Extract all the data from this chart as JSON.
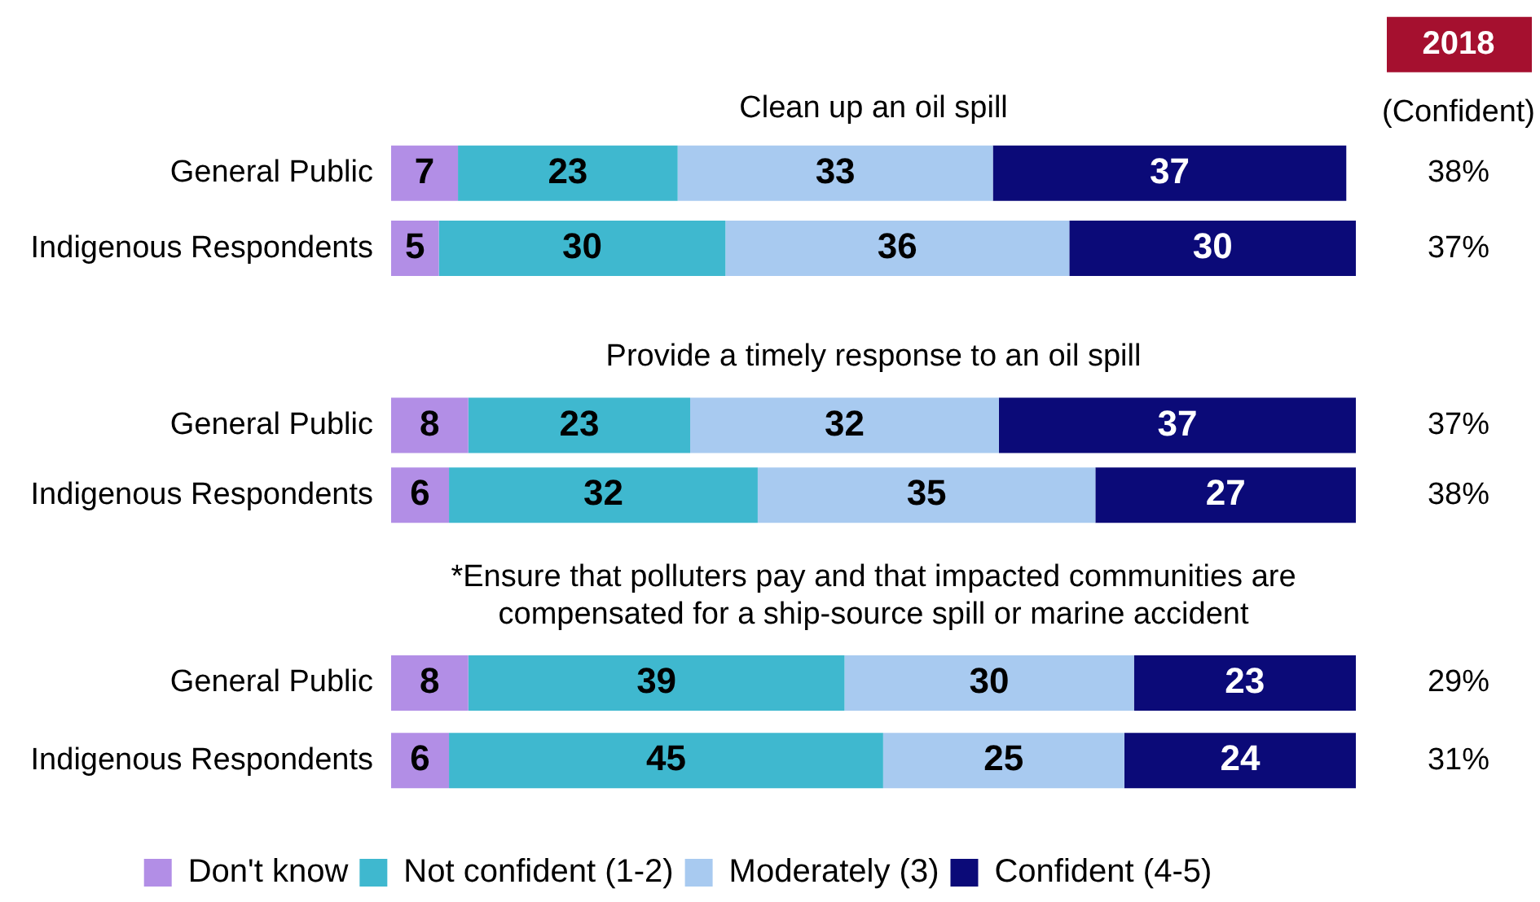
{
  "chart_data": [
    {
      "type": "bar",
      "orientation": "horizontal",
      "stacked": true,
      "title": "Clean up an oil spill",
      "categories": [
        "General Public",
        "Indigenous Respondents"
      ],
      "tick_labels": "y",
      "data_labels": true,
      "annotations": [
        "2018",
        "(Confident)",
        "38%",
        "37%"
      ],
      "series": [
        {
          "color": "#b28ee6",
          "values": [
            7,
            5
          ]
        },
        {
          "color": "#3fb8cf",
          "values": [
            23,
            30
          ]
        },
        {
          "color": "#a8caf0",
          "values": [
            33,
            36
          ]
        },
        {
          "color": "#0b0a78",
          "values": [
            37,
            30
          ]
        }
      ]
    },
    {
      "type": "bar",
      "orientation": "horizontal",
      "stacked": true,
      "title": "Provide a timely response to an oil spill",
      "categories": [
        "General Public",
        "Indigenous Respondents"
      ],
      "tick_labels": "y",
      "data_labels": true,
      "annotations": [
        "37%",
        "38%"
      ],
      "series": [
        {
          "color": "#b28ee6",
          "values": [
            8,
            6
          ]
        },
        {
          "color": "#3fb8cf",
          "values": [
            23,
            32
          ]
        },
        {
          "color": "#a8caf0",
          "values": [
            32,
            35
          ]
        },
        {
          "color": "#0b0a78",
          "values": [
            37,
            27
          ]
        }
      ]
    },
    {
      "type": "bar",
      "orientation": "horizontal",
      "stacked": true,
      "title": "*Ensure that polluters pay and that impacted communities are\ncompensated for a ship-source spill or marine accident",
      "categories": [
        "General Public",
        "Indigenous Respondents"
      ],
      "tick_labels": "y",
      "data_labels": true,
      "legend": "bottom",
      "annotations": [
        "29%",
        "31%"
      ],
      "series": [
        {
          "name": "Don't know",
          "color": "#b28ee6",
          "values": [
            8,
            6
          ]
        },
        {
          "name": "Not confident (1-2)",
          "color": "#3fb8cf",
          "values": [
            39,
            45
          ]
        },
        {
          "name": "Moderately (3)",
          "color": "#a8caf0",
          "values": [
            30,
            25
          ]
        },
        {
          "name": "Confident (4-5)",
          "color": "#0b0a78",
          "values": [
            23,
            24
          ]
        }
      ]
    }
  ]
}
